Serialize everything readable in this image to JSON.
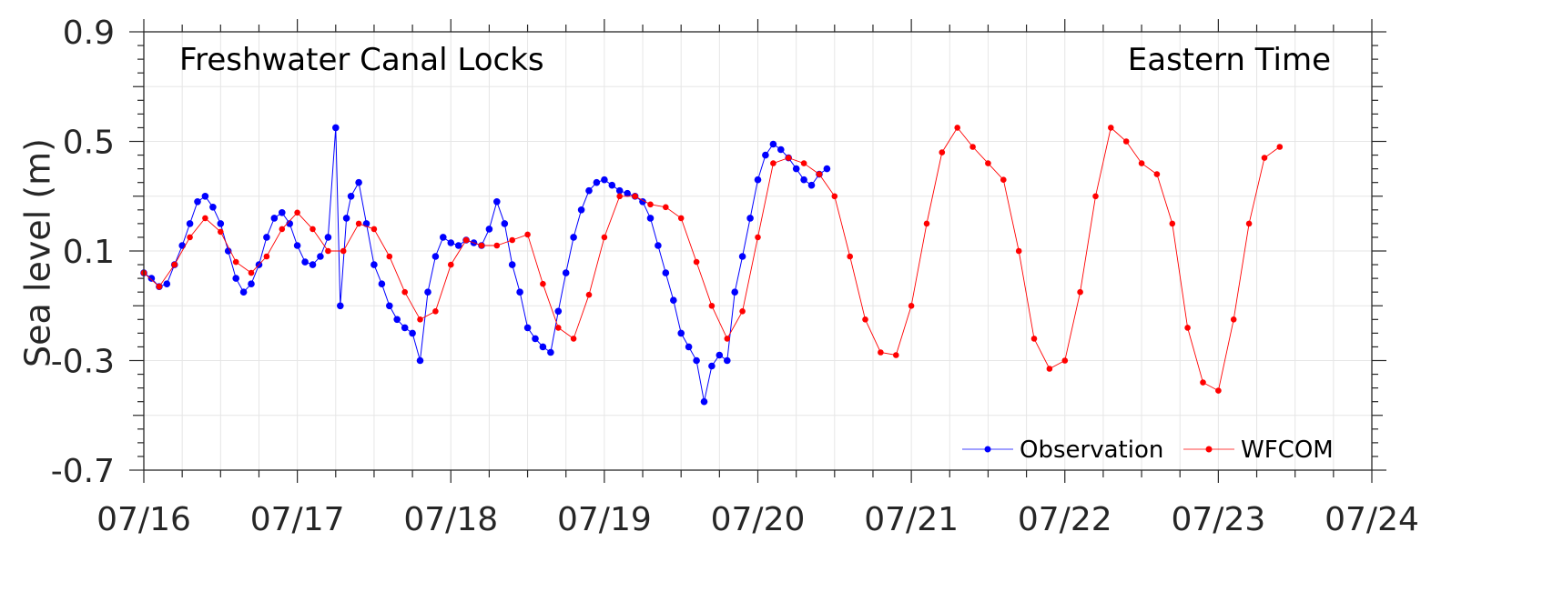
{
  "chart_data": {
    "type": "line",
    "title": "",
    "annotations": {
      "left": "Freshwater Canal Locks",
      "right": "Eastern Time"
    },
    "xlabel": "",
    "ylabel": "Sea level (m)",
    "x_unit": "days since 07/16 00:00 (Eastern Time)",
    "xlim": [
      0,
      8
    ],
    "ylim": [
      -0.7,
      0.9
    ],
    "x_ticks": [
      {
        "value": 0,
        "label": "07/16"
      },
      {
        "value": 1,
        "label": "07/17"
      },
      {
        "value": 2,
        "label": "07/18"
      },
      {
        "value": 3,
        "label": "07/19"
      },
      {
        "value": 4,
        "label": "07/20"
      },
      {
        "value": 5,
        "label": "07/21"
      },
      {
        "value": 6,
        "label": "07/22"
      },
      {
        "value": 7,
        "label": "07/23"
      },
      {
        "value": 8,
        "label": "07/24"
      }
    ],
    "y_ticks": [
      {
        "value": 0.9,
        "label": "0.9"
      },
      {
        "value": 0.5,
        "label": "0.5"
      },
      {
        "value": 0.1,
        "label": "0.1"
      },
      {
        "value": -0.3,
        "label": "-0.3"
      },
      {
        "value": -0.7,
        "label": "-0.7"
      }
    ],
    "grid": true,
    "legend_position": "bottom-right",
    "series": [
      {
        "name": "Observation",
        "color": "#0000ff",
        "x": [
          0.0,
          0.05,
          0.1,
          0.15,
          0.2,
          0.25,
          0.3,
          0.35,
          0.4,
          0.45,
          0.5,
          0.55,
          0.6,
          0.65,
          0.7,
          0.75,
          0.8,
          0.85,
          0.9,
          0.95,
          1.0,
          1.05,
          1.1,
          1.15,
          1.2,
          1.25,
          1.28,
          1.32,
          1.35,
          1.4,
          1.45,
          1.5,
          1.55,
          1.6,
          1.65,
          1.7,
          1.75,
          1.8,
          1.85,
          1.9,
          1.95,
          2.0,
          2.05,
          2.1,
          2.15,
          2.2,
          2.25,
          2.3,
          2.35,
          2.4,
          2.45,
          2.5,
          2.55,
          2.6,
          2.65,
          2.7,
          2.75,
          2.8,
          2.85,
          2.9,
          2.95,
          3.0,
          3.05,
          3.1,
          3.15,
          3.2,
          3.25,
          3.3,
          3.35,
          3.4,
          3.45,
          3.5,
          3.55,
          3.6,
          3.65,
          3.7,
          3.75,
          3.8,
          3.85,
          3.9,
          3.95,
          4.0,
          4.05,
          4.1,
          4.15,
          4.2,
          4.25,
          4.3,
          4.35,
          4.4,
          4.45
        ],
        "y": [
          0.02,
          0.0,
          -0.03,
          -0.02,
          0.05,
          0.12,
          0.2,
          0.28,
          0.3,
          0.26,
          0.2,
          0.1,
          0.0,
          -0.05,
          -0.02,
          0.05,
          0.15,
          0.22,
          0.24,
          0.2,
          0.12,
          0.06,
          0.05,
          0.08,
          0.15,
          0.55,
          -0.1,
          0.22,
          0.3,
          0.35,
          0.2,
          0.05,
          -0.02,
          -0.1,
          -0.15,
          -0.18,
          -0.2,
          -0.3,
          -0.05,
          0.08,
          0.15,
          0.13,
          0.12,
          0.14,
          0.13,
          0.12,
          0.18,
          0.28,
          0.2,
          0.05,
          -0.05,
          -0.18,
          -0.22,
          -0.25,
          -0.27,
          -0.12,
          0.02,
          0.15,
          0.25,
          0.32,
          0.35,
          0.36,
          0.34,
          0.32,
          0.31,
          0.3,
          0.28,
          0.22,
          0.12,
          0.02,
          -0.08,
          -0.2,
          -0.25,
          -0.3,
          -0.45,
          -0.32,
          -0.28,
          -0.3,
          -0.05,
          0.08,
          0.22,
          0.36,
          0.45,
          0.49,
          0.47,
          0.44,
          0.4,
          0.36,
          0.34,
          0.38,
          0.4
        ]
      },
      {
        "name": "WFCOM",
        "color": "#ff0000",
        "x": [
          0.0,
          0.1,
          0.2,
          0.3,
          0.4,
          0.5,
          0.6,
          0.7,
          0.8,
          0.9,
          1.0,
          1.1,
          1.2,
          1.3,
          1.4,
          1.5,
          1.6,
          1.7,
          1.8,
          1.9,
          2.0,
          2.1,
          2.2,
          2.3,
          2.4,
          2.5,
          2.6,
          2.7,
          2.8,
          2.9,
          3.0,
          3.1,
          3.2,
          3.3,
          3.4,
          3.5,
          3.6,
          3.7,
          3.8,
          3.9,
          4.0,
          4.1,
          4.2,
          4.3,
          4.4,
          4.5,
          4.6,
          4.7,
          4.8,
          4.9,
          5.0,
          5.1,
          5.2,
          5.3,
          5.4,
          5.5,
          5.6,
          5.7,
          5.8,
          5.9,
          6.0,
          6.1,
          6.2,
          6.3,
          6.4,
          6.5,
          6.6,
          6.7,
          6.8,
          6.9,
          7.0,
          7.1,
          7.2,
          7.3,
          7.4
        ],
        "y": [
          0.02,
          -0.03,
          0.05,
          0.15,
          0.22,
          0.17,
          0.06,
          0.02,
          0.08,
          0.18,
          0.24,
          0.18,
          0.1,
          0.1,
          0.2,
          0.18,
          0.08,
          -0.05,
          -0.15,
          -0.12,
          0.05,
          0.14,
          0.12,
          0.12,
          0.14,
          0.16,
          -0.02,
          -0.18,
          -0.22,
          -0.06,
          0.15,
          0.3,
          0.3,
          0.27,
          0.26,
          0.22,
          0.06,
          -0.1,
          -0.22,
          -0.12,
          0.15,
          0.42,
          0.44,
          0.42,
          0.38,
          0.3,
          0.08,
          -0.15,
          -0.27,
          -0.28,
          -0.1,
          0.2,
          0.46,
          0.55,
          0.48,
          0.42,
          0.36,
          0.1,
          -0.22,
          -0.33,
          -0.3,
          -0.05,
          0.3,
          0.55,
          0.5,
          0.42,
          0.38,
          0.2,
          -0.18,
          -0.38,
          -0.41,
          -0.15,
          0.2,
          0.44,
          0.48
        ]
      }
    ]
  }
}
